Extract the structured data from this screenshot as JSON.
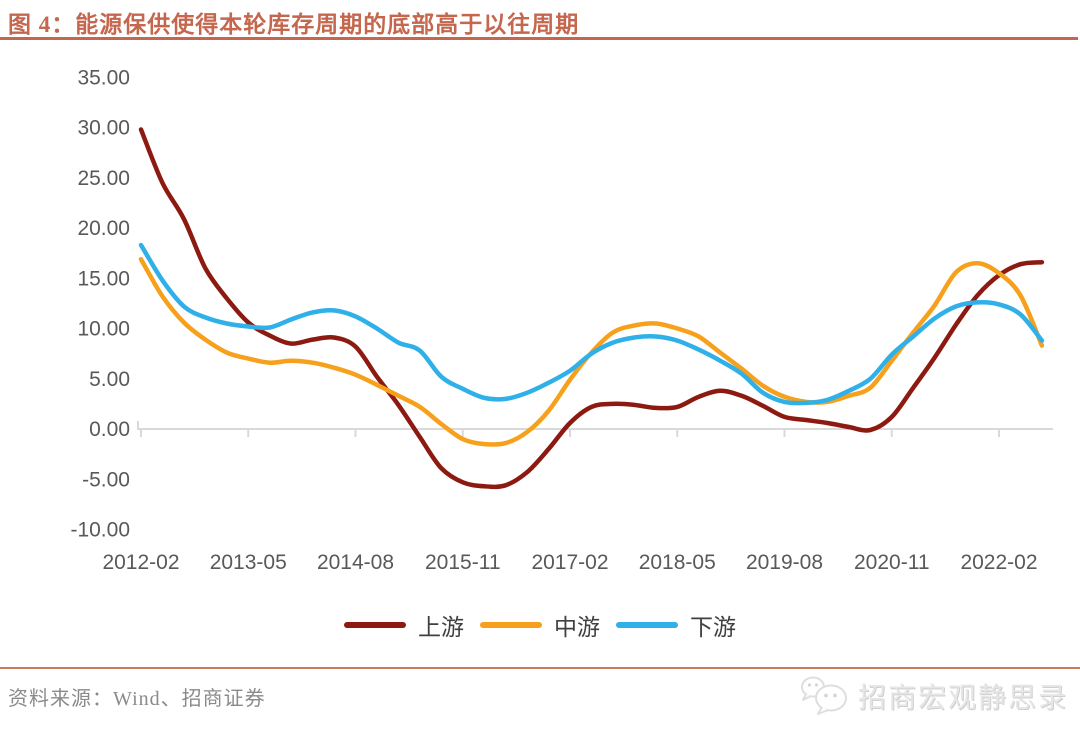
{
  "header": {
    "title": "图 4：能源保供使得本轮库存周期的底部高于以往周期"
  },
  "chart_data": {
    "type": "line",
    "title": "能源保供使得本轮库存周期的底部高于以往周期",
    "xlabel": "",
    "ylabel": "",
    "ylim": [
      -10,
      35
    ],
    "grid": false,
    "legend_position": "bottom",
    "y_tick_labels": [
      "35.00",
      "30.00",
      "25.00",
      "20.00",
      "15.00",
      "10.00",
      "5.00",
      "0.00",
      "-5.00",
      "-10.00"
    ],
    "x_tick_labels": [
      "2012-02",
      "2013-05",
      "2014-08",
      "2015-11",
      "2017-02",
      "2018-05",
      "2019-08",
      "2020-11",
      "2022-02"
    ],
    "x": [
      "2012-02",
      "2012-05",
      "2012-08",
      "2012-11",
      "2013-02",
      "2013-05",
      "2013-08",
      "2013-11",
      "2014-02",
      "2014-05",
      "2014-08",
      "2014-11",
      "2015-02",
      "2015-05",
      "2015-08",
      "2015-11",
      "2016-02",
      "2016-05",
      "2016-08",
      "2016-11",
      "2017-02",
      "2017-05",
      "2017-08",
      "2017-11",
      "2018-02",
      "2018-05",
      "2018-08",
      "2018-11",
      "2019-02",
      "2019-05",
      "2019-08",
      "2019-11",
      "2020-02",
      "2020-05",
      "2020-08",
      "2020-11",
      "2021-02",
      "2021-05",
      "2021-08",
      "2021-11",
      "2022-02",
      "2022-05",
      "2022-08"
    ],
    "series": [
      {
        "name": "上游",
        "color": "#8C1A11",
        "values": [
          29.8,
          24.5,
          20.9,
          16.0,
          13.0,
          10.6,
          9.3,
          8.5,
          8.9,
          9.1,
          8.2,
          5.2,
          2.4,
          -0.8,
          -3.9,
          -5.3,
          -5.7,
          -5.6,
          -4.3,
          -2.0,
          0.6,
          2.2,
          2.5,
          2.4,
          2.1,
          2.2,
          3.2,
          3.8,
          3.3,
          2.3,
          1.2,
          0.9,
          0.6,
          0.2,
          -0.1,
          1.2,
          4.1,
          7.1,
          10.4,
          13.3,
          15.3,
          16.4,
          16.6
        ]
      },
      {
        "name": "中游",
        "color": "#F7A01B",
        "values": [
          16.9,
          13.2,
          10.6,
          8.9,
          7.6,
          7.0,
          6.6,
          6.8,
          6.6,
          6.1,
          5.4,
          4.4,
          3.3,
          2.2,
          0.5,
          -1.0,
          -1.5,
          -1.4,
          -0.3,
          1.8,
          4.9,
          7.6,
          9.6,
          10.3,
          10.5,
          10.0,
          9.2,
          7.6,
          6.0,
          4.3,
          3.2,
          2.7,
          2.7,
          3.3,
          4.1,
          6.8,
          9.6,
          12.3,
          15.6,
          16.5,
          15.5,
          13.3,
          8.3
        ]
      },
      {
        "name": "下游",
        "color": "#2FB0E8",
        "values": [
          18.3,
          14.8,
          12.2,
          11.1,
          10.5,
          10.2,
          10.1,
          10.9,
          11.6,
          11.8,
          11.2,
          10.0,
          8.6,
          7.8,
          5.2,
          4.0,
          3.1,
          3.0,
          3.6,
          4.6,
          5.8,
          7.5,
          8.6,
          9.1,
          9.2,
          8.8,
          7.9,
          6.8,
          5.5,
          3.6,
          2.7,
          2.6,
          2.9,
          3.8,
          5.0,
          7.4,
          9.2,
          11.0,
          12.2,
          12.6,
          12.4,
          11.4,
          8.8
        ]
      }
    ]
  },
  "footer": {
    "source": "资料来源：Wind、招商证券",
    "watermark": "招商宏观静思录"
  },
  "colors": {
    "title": "#C4674E",
    "axis_line": "#D9D9D9",
    "tick_text": "#595959",
    "separator": "#CC7A5C"
  }
}
